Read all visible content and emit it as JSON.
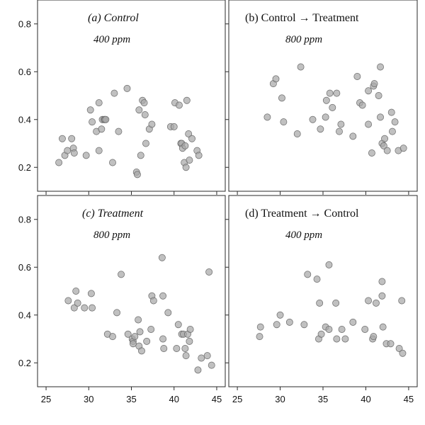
{
  "figure": {
    "colors": {
      "point_fill": "#a8a8a8",
      "point_stroke": "#6a6a6a",
      "axis": "#2a2a2a"
    }
  },
  "chart_data": [
    {
      "type": "scatter",
      "title": "(a) Control",
      "subtitle": "400 ppm",
      "title_italic": true,
      "xlim": [
        24,
        46
      ],
      "ylim": [
        0.1,
        0.9
      ],
      "x_ticks": [
        "25",
        "30",
        "35",
        "40",
        "45"
      ],
      "x_tick_values": [
        25,
        30,
        35,
        40,
        45
      ],
      "y_ticks": [
        "0.2",
        "0.4",
        "0.6",
        "0.8"
      ],
      "y_tick_values": [
        0.2,
        0.4,
        0.6,
        0.8
      ],
      "grid": false,
      "x": [
        26.5,
        26.9,
        27.2,
        27.5,
        28.0,
        28.2,
        28.3,
        29.7,
        30.2,
        30.4,
        30.9,
        31.2,
        31.2,
        31.5,
        31.6,
        31.8,
        31.9,
        32.0,
        32.8,
        33.0,
        33.5,
        34.5,
        35.6,
        35.7,
        35.9,
        36.1,
        36.3,
        36.5,
        36.6,
        36.7,
        37.1,
        37.4,
        39.6,
        40.0,
        40.1,
        40.6,
        40.8,
        40.9,
        41.0,
        41.2,
        41.3,
        41.4,
        41.5,
        41.7,
        41.8,
        42.1,
        42.7,
        42.9
      ],
      "y": [
        0.22,
        0.32,
        0.25,
        0.27,
        0.32,
        0.28,
        0.26,
        0.25,
        0.44,
        0.39,
        0.35,
        0.47,
        0.27,
        0.36,
        0.4,
        0.4,
        0.4,
        0.4,
        0.22,
        0.51,
        0.35,
        0.53,
        0.18,
        0.17,
        0.44,
        0.25,
        0.48,
        0.47,
        0.42,
        0.3,
        0.36,
        0.38,
        0.37,
        0.37,
        0.47,
        0.46,
        0.3,
        0.3,
        0.28,
        0.22,
        0.29,
        0.2,
        0.48,
        0.34,
        0.23,
        0.32,
        0.27,
        0.25
      ]
    },
    {
      "type": "scatter",
      "title": "(b) Control → Treatment",
      "subtitle": "800 ppm",
      "title_italic": false,
      "xlim": [
        24,
        46
      ],
      "ylim": [
        0.1,
        0.9
      ],
      "x_ticks": [
        "25",
        "30",
        "35",
        "40",
        "45"
      ],
      "x_tick_values": [
        25,
        30,
        35,
        40,
        45
      ],
      "y_ticks": [
        "0.2",
        "0.4",
        "0.6",
        "0.8"
      ],
      "y_tick_values": [
        0.2,
        0.4,
        0.6,
        0.8
      ],
      "grid": false,
      "x": [
        28.5,
        29.2,
        29.5,
        30.2,
        30.4,
        32.0,
        32.4,
        33.8,
        34.7,
        35.3,
        35.4,
        35.8,
        36.1,
        36.6,
        36.9,
        37.1,
        38.5,
        39.0,
        39.3,
        39.6,
        40.3,
        40.3,
        40.7,
        40.9,
        41.0,
        41.5,
        41.7,
        41.7,
        41.9,
        42.1,
        42.2,
        42.5,
        43.0,
        43.1,
        43.4,
        43.8,
        44.4
      ],
      "y": [
        0.41,
        0.55,
        0.57,
        0.49,
        0.39,
        0.34,
        0.62,
        0.4,
        0.36,
        0.41,
        0.48,
        0.51,
        0.45,
        0.51,
        0.35,
        0.38,
        0.33,
        0.58,
        0.47,
        0.46,
        0.38,
        0.52,
        0.26,
        0.54,
        0.55,
        0.5,
        0.62,
        0.41,
        0.3,
        0.29,
        0.32,
        0.27,
        0.43,
        0.35,
        0.39,
        0.27,
        0.28
      ]
    },
    {
      "type": "scatter",
      "title": "(c) Treatment",
      "subtitle": "800 ppm",
      "title_italic": true,
      "xlim": [
        24,
        46
      ],
      "ylim": [
        0.1,
        0.9
      ],
      "x_ticks": [
        "25",
        "30",
        "35",
        "40",
        "45"
      ],
      "x_tick_values": [
        25,
        30,
        35,
        40,
        45
      ],
      "y_ticks": [
        "0.2",
        "0.4",
        "0.6",
        "0.8"
      ],
      "y_tick_values": [
        0.2,
        0.4,
        0.6,
        0.8
      ],
      "grid": false,
      "x": [
        27.6,
        28.3,
        28.5,
        28.7,
        29.5,
        30.3,
        30.4,
        32.2,
        32.8,
        33.3,
        33.8,
        34.6,
        35.1,
        35.2,
        35.2,
        35.4,
        35.8,
        35.9,
        36.0,
        36.2,
        36.8,
        37.3,
        37.4,
        37.6,
        38.6,
        38.7,
        38.7,
        38.8,
        39.3,
        40.3,
        40.5,
        40.9,
        41.1,
        41.3,
        41.4,
        41.6,
        41.8,
        41.9,
        42.8,
        43.2,
        43.9,
        44.1,
        44.4
      ],
      "y": [
        0.46,
        0.43,
        0.5,
        0.45,
        0.43,
        0.49,
        0.43,
        0.32,
        0.31,
        0.41,
        0.57,
        0.32,
        0.3,
        0.29,
        0.28,
        0.31,
        0.38,
        0.27,
        0.33,
        0.25,
        0.29,
        0.34,
        0.48,
        0.46,
        0.64,
        0.48,
        0.3,
        0.26,
        0.41,
        0.26,
        0.36,
        0.32,
        0.32,
        0.26,
        0.23,
        0.32,
        0.29,
        0.34,
        0.17,
        0.22,
        0.23,
        0.58,
        0.19
      ]
    },
    {
      "type": "scatter",
      "title": "(d) Treatment → Control",
      "subtitle": "400 ppm",
      "title_italic": false,
      "xlim": [
        24,
        46
      ],
      "ylim": [
        0.1,
        0.9
      ],
      "x_ticks": [
        "25",
        "30",
        "35",
        "40",
        "45"
      ],
      "x_tick_values": [
        25,
        30,
        35,
        40,
        45
      ],
      "y_ticks": [
        "0.2",
        "0.4",
        "0.6",
        "0.8"
      ],
      "y_tick_values": [
        0.2,
        0.4,
        0.6,
        0.8
      ],
      "grid": false,
      "x": [
        27.6,
        27.7,
        29.6,
        30.0,
        31.1,
        32.8,
        33.2,
        34.3,
        34.5,
        34.6,
        34.8,
        35.3,
        35.7,
        35.7,
        36.5,
        36.6,
        37.2,
        37.6,
        38.5,
        39.9,
        40.3,
        40.8,
        40.9,
        41.2,
        41.9,
        41.9,
        42.0,
        42.4,
        42.9,
        43.9,
        44.2,
        44.3
      ],
      "y": [
        0.31,
        0.35,
        0.36,
        0.4,
        0.37,
        0.36,
        0.57,
        0.55,
        0.3,
        0.45,
        0.32,
        0.35,
        0.34,
        0.61,
        0.45,
        0.3,
        0.34,
        0.3,
        0.37,
        0.34,
        0.46,
        0.3,
        0.31,
        0.45,
        0.48,
        0.54,
        0.35,
        0.28,
        0.28,
        0.26,
        0.46,
        0.24
      ]
    }
  ]
}
